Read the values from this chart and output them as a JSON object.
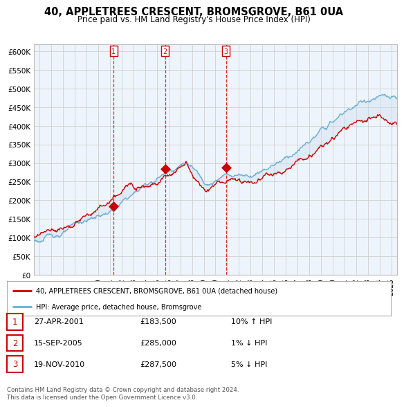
{
  "title": "40, APPLETREES CRESCENT, BROMSGROVE, B61 0UA",
  "subtitle": "Price paid vs. HM Land Registry's House Price Index (HPI)",
  "ylabel_ticks": [
    "£0",
    "£50K",
    "£100K",
    "£150K",
    "£200K",
    "£250K",
    "£300K",
    "£350K",
    "£400K",
    "£450K",
    "£500K",
    "£550K",
    "£600K"
  ],
  "ytick_vals": [
    0,
    50000,
    100000,
    150000,
    200000,
    250000,
    300000,
    350000,
    400000,
    450000,
    500000,
    550000,
    600000
  ],
  "ylim": [
    0,
    620000
  ],
  "xlim_start": 1994.5,
  "xlim_end": 2025.5,
  "xticks": [
    1995,
    1996,
    1997,
    1998,
    1999,
    2000,
    2001,
    2002,
    2003,
    2004,
    2005,
    2006,
    2007,
    2008,
    2009,
    2010,
    2011,
    2012,
    2013,
    2014,
    2015,
    2016,
    2017,
    2018,
    2019,
    2020,
    2021,
    2022,
    2023,
    2024,
    2025
  ],
  "sale_dates": [
    2001.32,
    2005.71,
    2010.89
  ],
  "sale_prices": [
    183500,
    285000,
    287500
  ],
  "sale_labels": [
    "1",
    "2",
    "3"
  ],
  "hpi_color": "#6baed6",
  "hpi_fill_color": "#c6dcef",
  "price_color": "#cc0000",
  "dashed_line_color": "#cc0000",
  "grid_color": "#d0d0d0",
  "bg_color": "#ffffff",
  "chart_bg_color": "#eef4fb",
  "legend_label_price": "40, APPLETREES CRESCENT, BROMSGROVE, B61 0UA (detached house)",
  "legend_label_hpi": "HPI: Average price, detached house, Bromsgrove",
  "table_entries": [
    {
      "num": "1",
      "date": "27-APR-2001",
      "price": "£183,500",
      "change": "10% ↑ HPI"
    },
    {
      "num": "2",
      "date": "15-SEP-2005",
      "price": "£285,000",
      "change": "1% ↓ HPI"
    },
    {
      "num": "3",
      "date": "19-NOV-2010",
      "price": "£287,500",
      "change": "5% ↓ HPI"
    }
  ],
  "footer": "Contains HM Land Registry data © Crown copyright and database right 2024.\nThis data is licensed under the Open Government Licence v3.0."
}
